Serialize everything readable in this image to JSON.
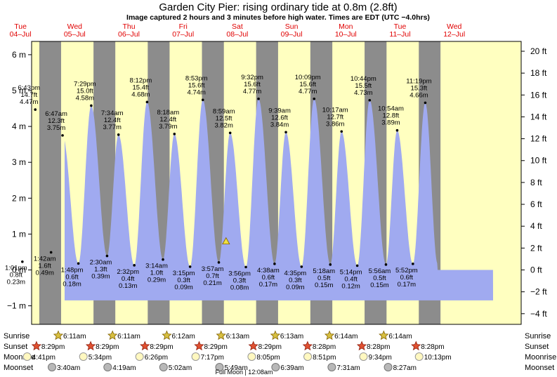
{
  "header": {
    "title": "Garden City Pier: rising  ordinary tide at 0.8m (2.8ft)",
    "subtitle": "Image captured 2 hours and 3 minutes before high water. Times are EDT (UTC −4.0hrs)"
  },
  "colors": {
    "day_bg": "#ffffc0",
    "night_band": "#8c8c8c",
    "tide_fill": "#a0aaf0",
    "day_label": "#e00000"
  },
  "chart_data": {
    "type": "area",
    "title": "Garden City Pier: rising  ordinary tide at 0.8m (2.8ft)",
    "current": {
      "value_m": 0.8,
      "value_ft": 2.8
    },
    "x_days": [
      {
        "day": "Tue",
        "date": "04–Jul"
      },
      {
        "day": "Wed",
        "date": "05–Jul"
      },
      {
        "day": "Thu",
        "date": "06–Jul"
      },
      {
        "day": "Fri",
        "date": "07–Jul"
      },
      {
        "day": "Sat",
        "date": "08–Jul"
      },
      {
        "day": "Sun",
        "date": "09–Jul"
      },
      {
        "day": "Mon",
        "date": "10–Jul"
      },
      {
        "day": "Tue",
        "date": "11–Jul"
      },
      {
        "day": "Wed",
        "date": "12–Jul"
      }
    ],
    "y_left": {
      "unit": "m",
      "ticks": [
        "6 m",
        "5 m",
        "4 m",
        "3 m",
        "2 m",
        "1 m",
        "0 m",
        "−1 m"
      ],
      "ylim": [
        -1.25,
        6.3
      ]
    },
    "y_right": {
      "unit": "ft",
      "ticks": [
        "20 ft",
        "18 ft",
        "16 ft",
        "14 ft",
        "12 ft",
        "10 ft",
        "8 ft",
        "6 ft",
        "4 ft",
        "2 ft",
        "0 ft",
        "−2 ft",
        "−4 ft"
      ]
    },
    "tides": [
      {
        "time": "1:01 pm",
        "ft": "0.8 ft",
        "m": "0.23 m",
        "type": "low",
        "day": 0.542,
        "value": 0.23
      },
      {
        "time": "6:43 pm",
        "ft": "14.7 ft",
        "m": "4.47 m",
        "type": "high",
        "day": 0.78,
        "value": 4.47
      },
      {
        "time": "1:42 am",
        "ft": "1.6 ft",
        "m": "0.49 m",
        "type": "low",
        "day": 1.071,
        "value": 0.49
      },
      {
        "time": "6:47 am",
        "ft": "12.3 ft",
        "m": "3.75 m",
        "type": "high",
        "day": 1.283,
        "value": 3.75
      },
      {
        "time": "1:48 pm",
        "ft": "0.6 ft",
        "m": "0.18 m",
        "type": "low",
        "day": 1.575,
        "value": 0.18
      },
      {
        "time": "7:29 pm",
        "ft": "15.0 ft",
        "m": "4.58 m",
        "type": "high",
        "day": 1.812,
        "value": 4.58
      },
      {
        "time": "2:30 am",
        "ft": "1.3 ft",
        "m": "0.39 m",
        "type": "low",
        "day": 2.104,
        "value": 0.39
      },
      {
        "time": "7:34 am",
        "ft": "12.4 ft",
        "m": "3.77 m",
        "type": "high",
        "day": 2.315,
        "value": 3.77
      },
      {
        "time": "2:32 pm",
        "ft": "0.4 ft",
        "m": "0.13 m",
        "type": "low",
        "day": 2.606,
        "value": 0.13
      },
      {
        "time": "8:12 pm",
        "ft": "15.4 ft",
        "m": "4.68 m",
        "type": "high",
        "day": 2.842,
        "value": 4.68
      },
      {
        "time": "3:14 am",
        "ft": "1.0 ft",
        "m": "0.29 m",
        "type": "low",
        "day": 3.135,
        "value": 0.29
      },
      {
        "time": "8:18 am",
        "ft": "12.4 ft",
        "m": "3.79 m",
        "type": "high",
        "day": 3.346,
        "value": 3.79
      },
      {
        "time": "3:15 pm",
        "ft": "0.3 ft",
        "m": "0.09 m",
        "type": "low",
        "day": 3.635,
        "value": 0.09
      },
      {
        "time": "8:53 pm",
        "ft": "15.6 ft",
        "m": "4.74 m",
        "type": "high",
        "day": 3.87,
        "value": 4.74
      },
      {
        "time": "3:57 am",
        "ft": "0.7 ft",
        "m": "0.21 m",
        "type": "low",
        "day": 4.165,
        "value": 0.21
      },
      {
        "time": "8:59 am",
        "ft": "12.5 ft",
        "m": "3.82 m",
        "type": "high",
        "day": 4.374,
        "value": 3.82
      },
      {
        "time": "3:56 pm",
        "ft": "0.3 ft",
        "m": "0.08 m",
        "type": "low",
        "day": 4.664,
        "value": 0.08
      },
      {
        "time": "9:32 pm",
        "ft": "15.6 ft",
        "m": "4.77 m",
        "type": "high",
        "day": 4.897,
        "value": 4.77
      },
      {
        "time": "4:38 am",
        "ft": "0.6 ft",
        "m": "0.17 m",
        "type": "low",
        "day": 5.193,
        "value": 0.17
      },
      {
        "time": "9:39 am",
        "ft": "12.6 ft",
        "m": "3.84 m",
        "type": "high",
        "day": 5.402,
        "value": 3.84
      },
      {
        "time": "4:35 pm",
        "ft": "0.3 ft",
        "m": "0.09 m",
        "type": "low",
        "day": 5.691,
        "value": 0.09
      },
      {
        "time": "10:09 pm",
        "ft": "15.6 ft",
        "m": "4.77 m",
        "type": "high",
        "day": 5.923,
        "value": 4.77
      },
      {
        "time": "5:18 am",
        "ft": "0.5 ft",
        "m": "0.15 m",
        "type": "low",
        "day": 6.221,
        "value": 0.15
      },
      {
        "time": "10:17 am",
        "ft": "12.7 ft",
        "m": "3.86 m",
        "type": "high",
        "day": 6.428,
        "value": 3.86
      },
      {
        "time": "5:14 pm",
        "ft": "0.4 ft",
        "m": "0.12 m",
        "type": "low",
        "day": 6.718,
        "value": 0.12
      },
      {
        "time": "10:44 pm",
        "ft": "15.5 ft",
        "m": "4.73 m",
        "type": "high",
        "day": 6.947,
        "value": 4.73
      },
      {
        "time": "5:56 am",
        "ft": "0.5 ft",
        "m": "0.15 m",
        "type": "low",
        "day": 7.247,
        "value": 0.15
      },
      {
        "time": "10:54 am",
        "ft": "12.8 ft",
        "m": "3.89 m",
        "type": "high",
        "day": 7.454,
        "value": 3.89
      },
      {
        "time": "5:52 pm",
        "ft": "0.6 ft",
        "m": "0.17 m",
        "type": "low",
        "day": 7.744,
        "value": 0.17
      },
      {
        "time": "11:19 pm",
        "ft": "15.3 ft",
        "m": "4.66 m",
        "type": "high",
        "day": 7.972,
        "value": 4.66
      }
    ],
    "current_marker_day": 4.298
  },
  "astro": {
    "row_labels": {
      "sunrise": "Sunrise",
      "sunset": "Sunset",
      "moonrise": "Moonrise",
      "moonset": "Moonset"
    },
    "sunrise": [
      {
        "day": 1.256,
        "time": "6:11am"
      },
      {
        "day": 2.256,
        "time": "6:11am"
      },
      {
        "day": 3.257,
        "time": "6:12am"
      },
      {
        "day": 4.258,
        "time": "6:13am"
      },
      {
        "day": 5.258,
        "time": "6:13am"
      },
      {
        "day": 6.258,
        "time": "6:14am"
      },
      {
        "day": 7.258,
        "time": "6:14am"
      }
    ],
    "sunset": [
      {
        "day": 0.854,
        "time": "8:29pm"
      },
      {
        "day": 1.854,
        "time": "8:29pm"
      },
      {
        "day": 2.854,
        "time": "8:29pm"
      },
      {
        "day": 3.854,
        "time": "8:29pm"
      },
      {
        "day": 4.853,
        "time": "8:29pm"
      },
      {
        "day": 5.853,
        "time": "8:28pm"
      },
      {
        "day": 6.853,
        "time": "8:28pm"
      },
      {
        "day": 7.853,
        "time": "8:28pm"
      }
    ],
    "moonrise": [
      {
        "day": 0.695,
        "time": "4:41pm"
      },
      {
        "day": 1.732,
        "time": "5:34pm"
      },
      {
        "day": 2.768,
        "time": "6:26pm"
      },
      {
        "day": 3.803,
        "time": "7:17pm"
      },
      {
        "day": 4.837,
        "time": "8:05pm"
      },
      {
        "day": 5.869,
        "time": "8:51pm"
      },
      {
        "day": 6.898,
        "time": "9:34pm"
      },
      {
        "day": 7.924,
        "time": "10:13pm"
      }
    ],
    "moonset": [
      {
        "day": 1.153,
        "time": "3:40am"
      },
      {
        "day": 2.18,
        "time": "4:19am"
      },
      {
        "day": 3.21,
        "time": "5:02am"
      },
      {
        "day": 4.242,
        "time": "5:49am"
      },
      {
        "day": 5.277,
        "time": "6:39am"
      },
      {
        "day": 6.313,
        "time": "7:31am"
      },
      {
        "day": 7.352,
        "time": "8:27am"
      }
    ],
    "full_moon": "Full Moon | 12:08am"
  }
}
